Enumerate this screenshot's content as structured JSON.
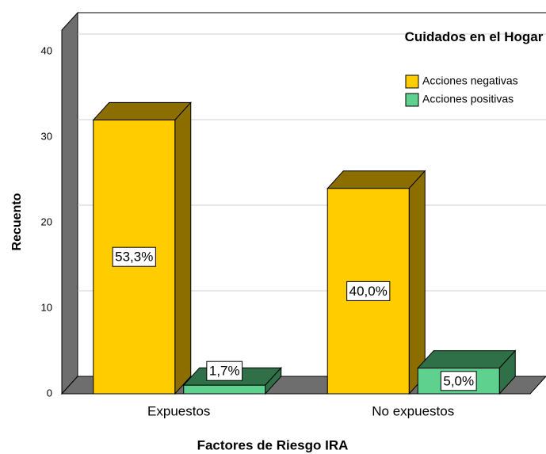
{
  "chart_data": {
    "type": "bar3d",
    "y_label": "Recuento",
    "x_label": "Factores de Riesgo IRA",
    "legend_title": "Cuidados en el Hogar",
    "categories": [
      "Expuestos",
      "No expuestos"
    ],
    "series": [
      {
        "name": "Acciones negativas",
        "color": "#FFCC00",
        "shade": "#8C6E00",
        "values": [
          32,
          24
        ],
        "percent_values": [
          53.3,
          40.0
        ],
        "percent_labels": [
          "53,3%",
          "40,0%"
        ]
      },
      {
        "name": "Acciones positivas",
        "color": "#5ED18E",
        "shade": "#2F7048",
        "values": [
          1,
          3
        ],
        "percent_values": [
          1.7,
          5.0
        ],
        "percent_labels": [
          "1,7%",
          "5,0%"
        ]
      }
    ],
    "ylim": [
      0,
      42.5
    ],
    "yticks": [
      0,
      10,
      20,
      30,
      40
    ],
    "grid": true
  }
}
